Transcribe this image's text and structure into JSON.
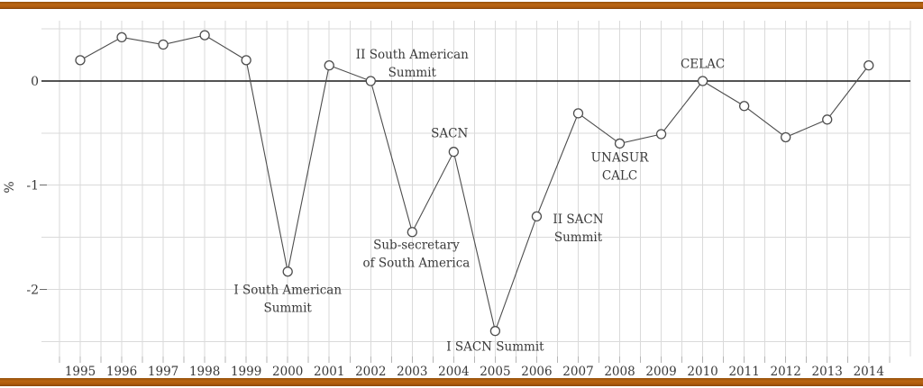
{
  "page": {
    "background": "#ffffff",
    "accent_bar_color": "#a95a0e"
  },
  "chart_data": {
    "type": "line",
    "title": "",
    "xlabel": "",
    "ylabel": "%",
    "x": [
      1995,
      1996,
      1997,
      1998,
      1999,
      2000,
      2001,
      2002,
      2003,
      2004,
      2005,
      2006,
      2007,
      2008,
      2009,
      2010,
      2011,
      2012,
      2013,
      2014
    ],
    "values": [
      0.2,
      0.42,
      0.35,
      0.44,
      0.2,
      -1.83,
      0.15,
      0.0,
      -1.45,
      -0.68,
      -2.4,
      -1.3,
      -0.31,
      -0.6,
      -0.51,
      0.0,
      -0.24,
      -0.54,
      -0.37,
      0.15
    ],
    "ylim": [
      -2.64,
      0.58
    ],
    "xlim": [
      1994.25,
      2015.0
    ],
    "yticks": [
      {
        "label": "0",
        "value": 0
      },
      {
        "label": "-1",
        "value": -1
      },
      {
        "label": "-2",
        "value": -2
      }
    ],
    "grid": {
      "on": true,
      "x_step": 0.5,
      "y_step": 0.5,
      "color": "#dadada"
    },
    "legend": {
      "visible": false
    },
    "line_color": "#4d4d4d",
    "zero_line_color": "#1a1a1a",
    "tick_color": "#b5b5b5",
    "labeled_tick_color": "#6b6b6b",
    "text_color": "#3a3a3a",
    "marker": {
      "shape": "circle-open",
      "fill": "#ffffff",
      "stroke": "#4d4d4d",
      "radius": 5
    },
    "annotations": [
      {
        "text": [
          "II South American",
          "Summit"
        ],
        "year": 2003.0,
        "value": 0.19
      },
      {
        "text": [
          "SACN"
        ],
        "year": 2003.9,
        "value": -0.5
      },
      {
        "text": [
          "Sub-secretary",
          "of South America"
        ],
        "year": 2003.1,
        "value": -1.64
      },
      {
        "text": [
          "I South American",
          "Summit"
        ],
        "year": 2000.0,
        "value": -2.07
      },
      {
        "text": [
          "I SACN Summit"
        ],
        "year": 2005.0,
        "value": -2.55
      },
      {
        "text": [
          "II SACN",
          "Summit"
        ],
        "year": 2007.0,
        "value": -1.39
      },
      {
        "text": [
          "UNASUR",
          "CALC"
        ],
        "year": 2008.0,
        "value": -0.8
      },
      {
        "text": [
          "CELAC"
        ],
        "year": 2010.0,
        "value": 0.164
      }
    ]
  }
}
